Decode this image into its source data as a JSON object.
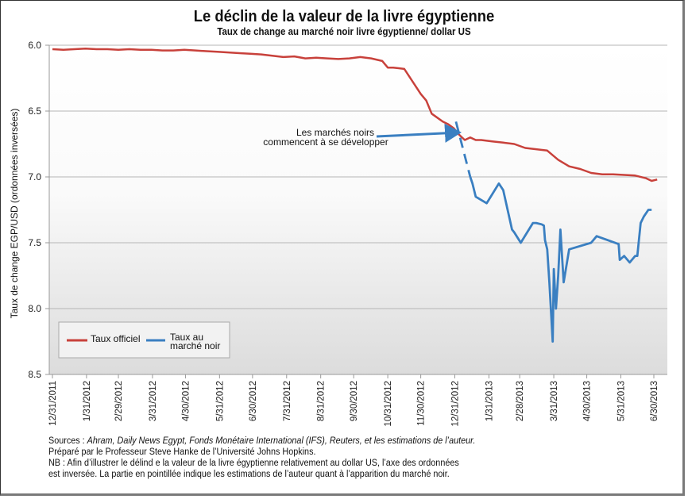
{
  "chart_data": {
    "type": "line",
    "title": "Le déclin de la valeur de la livre égyptienne",
    "subtitle": "Taux de change au marché noir livre égyptienne/ dollar US",
    "ylabel": "Taux de change EGP/USD (ordonnées inversées)",
    "xlabel": "",
    "ylim": [
      6.0,
      8.5
    ],
    "y_inverted": true,
    "y_ticks": [
      "6.0",
      "6.5",
      "7.0",
      "7.5",
      "8.0",
      "8.5"
    ],
    "x_ticks": [
      "12/31/2011",
      "1/31/2012",
      "2/29/2012",
      "3/31/2012",
      "4/30/2012",
      "5/31/2012",
      "6/30/2012",
      "7/31/2012",
      "8/31/2012",
      "9/30/2012",
      "10/31/2012",
      "11/30/2012",
      "12/31/2012",
      "1/31/2013",
      "2/28/2013",
      "3/31/2013",
      "4/30/2013",
      "5/31/2013",
      "6/30/2013"
    ],
    "x_range_days": [
      0,
      555
    ],
    "x_unit": "days since 12/31/2011",
    "grid": true,
    "legend_position": "bottom-left",
    "series": [
      {
        "name": "Taux officiel",
        "color": "#c8413b",
        "x": [
          0,
          10,
          20,
          30,
          40,
          50,
          60,
          70,
          80,
          90,
          100,
          110,
          120,
          130,
          140,
          150,
          160,
          170,
          180,
          190,
          200,
          210,
          220,
          230,
          240,
          250,
          260,
          270,
          280,
          290,
          300,
          305,
          310,
          315,
          320,
          335,
          340,
          345,
          350,
          355,
          360,
          365,
          370,
          375,
          380,
          385,
          390,
          400,
          410,
          420,
          430,
          440,
          450,
          460,
          470,
          480,
          490,
          500,
          510,
          520,
          530,
          540,
          545,
          550
        ],
        "values": [
          6.03,
          6.035,
          6.03,
          6.025,
          6.03,
          6.03,
          6.035,
          6.03,
          6.035,
          6.035,
          6.04,
          6.04,
          6.035,
          6.04,
          6.045,
          6.05,
          6.055,
          6.06,
          6.065,
          6.07,
          6.08,
          6.09,
          6.085,
          6.1,
          6.095,
          6.1,
          6.105,
          6.1,
          6.09,
          6.1,
          6.12,
          6.17,
          6.17,
          6.175,
          6.18,
          6.37,
          6.42,
          6.52,
          6.55,
          6.58,
          6.6,
          6.63,
          6.68,
          6.72,
          6.7,
          6.72,
          6.72,
          6.73,
          6.74,
          6.75,
          6.78,
          6.79,
          6.8,
          6.87,
          6.92,
          6.94,
          6.97,
          6.98,
          6.98,
          6.985,
          6.99,
          7.01,
          7.03,
          7.02
        ]
      },
      {
        "name": "Taux au marché noir",
        "color": "#3a7fc1",
        "estimated_x": [
          367,
          380
        ],
        "estimated_values": [
          6.58,
          7.0
        ],
        "x": [
          380,
          382,
          385,
          395,
          406,
          410,
          418,
          420,
          426,
          437,
          438,
          440,
          445,
          447,
          448,
          450,
          452,
          455,
          456,
          458,
          460,
          462,
          465,
          470,
          490,
          495,
          515,
          516,
          520,
          525,
          530,
          532,
          535,
          538,
          542,
          545
        ],
        "values": [
          7.0,
          7.05,
          7.15,
          7.2,
          7.05,
          7.1,
          7.4,
          7.42,
          7.5,
          7.35,
          7.35,
          7.35,
          7.36,
          7.37,
          7.48,
          7.55,
          7.8,
          8.25,
          7.7,
          8.0,
          7.75,
          7.4,
          7.8,
          7.55,
          7.5,
          7.45,
          7.51,
          7.63,
          7.6,
          7.65,
          7.6,
          7.6,
          7.35,
          7.3,
          7.25,
          7.25
        ]
      }
    ],
    "annotation": {
      "line1": "Les marchés noirs",
      "line2": "commencent à se développer"
    }
  },
  "legend": {
    "official": "Taux officiel",
    "black_line1": "Taux au",
    "black_line2": "marché noir"
  },
  "footnotes": {
    "sources_label": "Sources : ",
    "sources_italic": "Ahram, Daily News Egypt, Fonds Monétaire International (IFS), Reuters, et les estimations de l’auteur.",
    "prepared": "Préparé par le Professeur Steve Hanke de l’Université Johns Hopkins.",
    "nb_line1": "NB : Afin d’illustrer le délind e la valeur de la livre égyptienne relativement au dollar US, l’axe des ordonnées",
    "nb_line2": "est inversée. La partie en pointillée indique les estimations de l’auteur quant à l’apparition du marché noir."
  }
}
